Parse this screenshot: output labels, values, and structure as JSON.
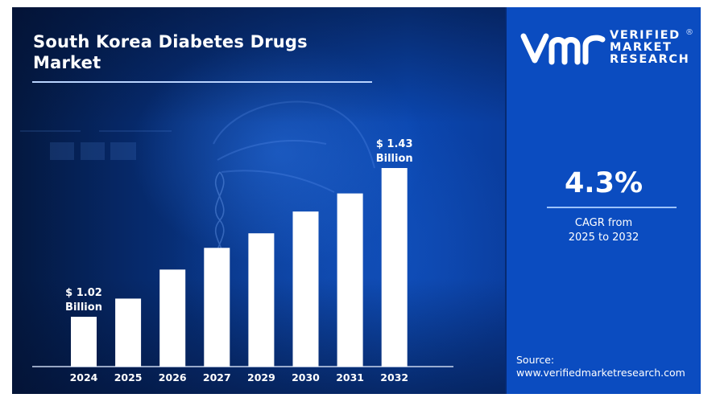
{
  "chart_data": {
    "type": "bar",
    "title": "South Korea Diabetes Drugs Market",
    "categories": [
      "2024",
      "2025",
      "2026",
      "2027",
      "2029",
      "2030",
      "2031",
      "2032"
    ],
    "values": [
      1.02,
      1.07,
      1.15,
      1.21,
      1.25,
      1.31,
      1.36,
      1.43
    ],
    "unit": "USD Billion",
    "xlabel": "",
    "ylabel": "",
    "grid": false,
    "annotations": [
      {
        "category": "2024",
        "line1": "$ 1.02",
        "line2": "Billion"
      },
      {
        "category": "2032",
        "line1": "$ 1.43",
        "line2": "Billion"
      }
    ]
  },
  "header": {
    "title_line1": "South Korea Diabetes Drugs",
    "title_line2": "Market"
  },
  "brand": {
    "logo_icon": "vmr-logo-icon",
    "line1": "VERIFIED",
    "line2": "MARKET",
    "line3": "RESEARCH",
    "registered": "®"
  },
  "cagr": {
    "value": "4.3%",
    "caption_line1": "CAGR from",
    "caption_line2": "2025 to 2032"
  },
  "source": {
    "label": "Source:",
    "url": "www.verifiedmarketresearch.com"
  },
  "colors": {
    "panel_blue": "#0b4cc0",
    "bar": "#ffffff",
    "background_dark": "#04183f"
  }
}
